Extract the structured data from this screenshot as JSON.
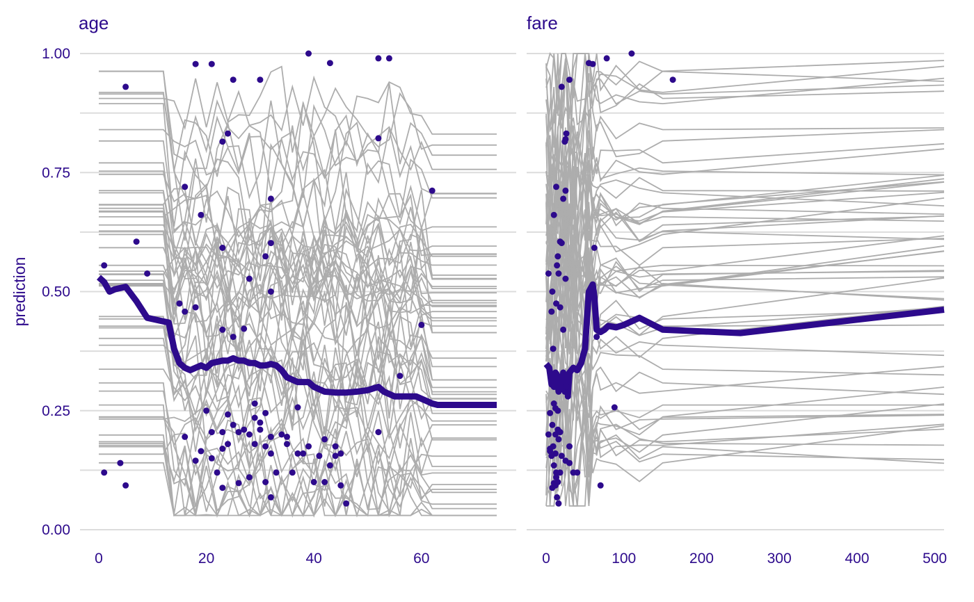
{
  "colors": {
    "text": "#2d0a8c",
    "pdp_line": "#2d0a8c",
    "ice_lines": "#adadad",
    "observations": "#2d0a8c",
    "gridlines": "#dcdcdc"
  },
  "chart_data": {
    "type": "line",
    "ylabel": "prediction",
    "ylim": [
      0,
      1
    ],
    "yticks": [
      "0.00",
      "0.25",
      "0.50",
      "0.75",
      "1.00"
    ],
    "ytick_values": [
      0,
      0.25,
      0.5,
      0.75,
      1
    ],
    "grid": true,
    "panels": [
      {
        "title": "age",
        "xlim": [
          0,
          74
        ],
        "xticks": [
          "0",
          "20",
          "40",
          "60"
        ],
        "xtick_values": [
          0,
          20,
          40,
          60
        ],
        "pdp": {
          "x": [
            0,
            1,
            2,
            3,
            5,
            7,
            9,
            11,
            13,
            14,
            15,
            16,
            17,
            18,
            19,
            20,
            21,
            23,
            24,
            25,
            26,
            27,
            28,
            29,
            30,
            31,
            32,
            33,
            34,
            35,
            36,
            37,
            38,
            39,
            40,
            42,
            44,
            46,
            48,
            50,
            52,
            53,
            55,
            57,
            59,
            61,
            62,
            63,
            70,
            74
          ],
          "y": [
            0.53,
            0.52,
            0.5,
            0.505,
            0.51,
            0.48,
            0.445,
            0.44,
            0.435,
            0.38,
            0.35,
            0.34,
            0.335,
            0.34,
            0.345,
            0.34,
            0.35,
            0.355,
            0.355,
            0.36,
            0.355,
            0.355,
            0.35,
            0.35,
            0.345,
            0.345,
            0.348,
            0.345,
            0.335,
            0.32,
            0.315,
            0.31,
            0.31,
            0.31,
            0.3,
            0.29,
            0.288,
            0.288,
            0.29,
            0.293,
            0.3,
            0.29,
            0.28,
            0.28,
            0.28,
            0.27,
            0.265,
            0.262,
            0.262,
            0.262
          ]
        },
        "observations": {
          "x": [
            1,
            1,
            5,
            7,
            9,
            4,
            5,
            18,
            21,
            25,
            30,
            39,
            43,
            52,
            54,
            23,
            24,
            52,
            16,
            19,
            32,
            62,
            23,
            31,
            32,
            15,
            16,
            18,
            28,
            32,
            27,
            23,
            25,
            56,
            60,
            37,
            29,
            20,
            24,
            30,
            31,
            21,
            23,
            26,
            28,
            30,
            32,
            35,
            38,
            42,
            44,
            52,
            16,
            18,
            21,
            23,
            25,
            27,
            29,
            31,
            32,
            34,
            36,
            40,
            43,
            45,
            24,
            26,
            28,
            31,
            33,
            35,
            37,
            39,
            41,
            42,
            44,
            46,
            29,
            32,
            23,
            45,
            19,
            22
          ],
          "y": [
            0.555,
            0.12,
            0.93,
            0.605,
            0.538,
            0.14,
            0.093,
            0.978,
            0.978,
            0.945,
            0.945,
            1.0,
            0.98,
            0.99,
            0.99,
            0.815,
            0.832,
            0.822,
            0.72,
            0.661,
            0.695,
            0.712,
            0.592,
            0.574,
            0.602,
            0.475,
            0.458,
            0.467,
            0.527,
            0.5,
            0.422,
            0.42,
            0.405,
            0.323,
            0.43,
            0.257,
            0.265,
            0.25,
            0.242,
            0.225,
            0.245,
            0.205,
            0.205,
            0.205,
            0.2,
            0.21,
            0.195,
            0.195,
            0.16,
            0.19,
            0.175,
            0.205,
            0.195,
            0.145,
            0.15,
            0.17,
            0.22,
            0.21,
            0.18,
            0.175,
            0.16,
            0.2,
            0.12,
            0.1,
            0.135,
            0.16,
            0.18,
            0.098,
            0.11,
            0.1,
            0.12,
            0.18,
            0.16,
            0.175,
            0.155,
            0.1,
            0.155,
            0.055,
            0.235,
            0.068,
            0.088,
            0.093,
            0.165,
            0.12
          ]
        }
      },
      {
        "title": "fare",
        "xlim": [
          0,
          512
        ],
        "xticks": [
          "0",
          "100",
          "200",
          "300",
          "400",
          "500"
        ],
        "xtick_values": [
          0,
          100,
          200,
          300,
          400,
          500
        ],
        "pdp": {
          "x": [
            0,
            4,
            7,
            8,
            10,
            12,
            14,
            16,
            18,
            20,
            22,
            24,
            26,
            28,
            30,
            35,
            40,
            45,
            50,
            55,
            60,
            62,
            65,
            70,
            75,
            80,
            90,
            100,
            120,
            150,
            250,
            512
          ],
          "y": [
            0.348,
            0.34,
            0.305,
            0.32,
            0.3,
            0.33,
            0.325,
            0.29,
            0.32,
            0.3,
            0.33,
            0.29,
            0.3,
            0.283,
            0.33,
            0.34,
            0.335,
            0.35,
            0.38,
            0.5,
            0.515,
            0.49,
            0.42,
            0.415,
            0.42,
            0.428,
            0.425,
            0.43,
            0.445,
            0.42,
            0.413,
            0.462
          ]
        },
        "observations": {
          "x": [
            20,
            30,
            55,
            60,
            78,
            110,
            163,
            25,
            26,
            24,
            22,
            10,
            13,
            20,
            18,
            25,
            15,
            62,
            14,
            16,
            8,
            7,
            3,
            13,
            18,
            22,
            25,
            9,
            10,
            15,
            12,
            28,
            26,
            5,
            8,
            12,
            15,
            18,
            5,
            9,
            12,
            16,
            20,
            25,
            30,
            35,
            30,
            3,
            5,
            7,
            10,
            13,
            15,
            18,
            8,
            10,
            12,
            14,
            16,
            88,
            65,
            40,
            13,
            70
          ],
          "y": [
            0.93,
            0.945,
            0.98,
            0.978,
            0.99,
            1.0,
            0.945,
            0.82,
            0.832,
            0.815,
            0.695,
            0.661,
            0.72,
            0.602,
            0.605,
            0.712,
            0.574,
            0.592,
            0.555,
            0.538,
            0.5,
            0.458,
            0.538,
            0.475,
            0.467,
            0.42,
            0.527,
            0.38,
            0.265,
            0.25,
            0.255,
            0.28,
            0.3,
            0.245,
            0.22,
            0.2,
            0.21,
            0.205,
            0.17,
            0.175,
            0.16,
            0.19,
            0.155,
            0.145,
            0.175,
            0.12,
            0.14,
            0.2,
            0.165,
            0.155,
            0.135,
            0.12,
            0.1,
            0.12,
            0.088,
            0.098,
            0.093,
            0.068,
            0.055,
            0.257,
            0.405,
            0.12,
            0.11,
            0.093
          ]
        }
      }
    ]
  }
}
